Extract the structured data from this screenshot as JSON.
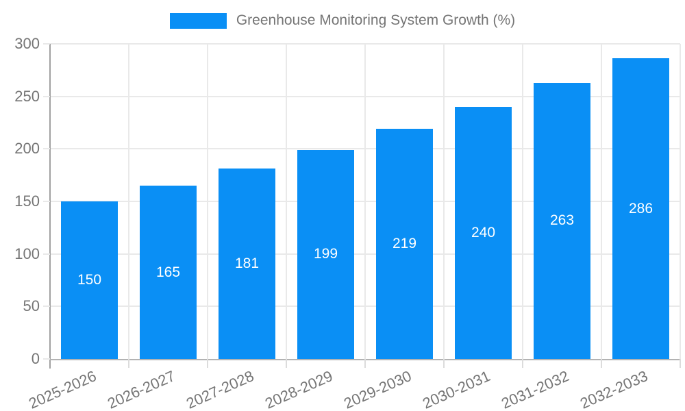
{
  "chart_data": {
    "type": "bar",
    "title": "Greenhouse Monitoring System Growth (%)",
    "categories": [
      "2025-2026",
      "2026-2027",
      "2027-2028",
      "2028-2029",
      "2029-2030",
      "2030-2031",
      "2031-2032",
      "2032-2033"
    ],
    "values": [
      150,
      165,
      181,
      199,
      219,
      240,
      263,
      286
    ],
    "xlabel": "",
    "ylabel": "",
    "ylim": [
      0,
      300
    ],
    "yticks": [
      0,
      50,
      100,
      150,
      200,
      250,
      300
    ],
    "grid": true,
    "legend_position": "top-center",
    "bar_labels_inside": true,
    "bar_color": "#0a8ff5",
    "bar_label_color": "#ffffff",
    "axis_text_color": "#757575",
    "grid_color": "#e9e9e9"
  }
}
